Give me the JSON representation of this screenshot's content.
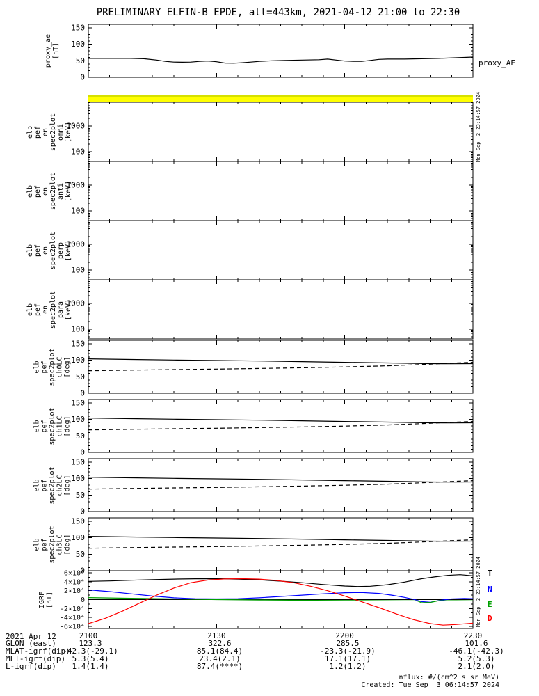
{
  "title": "PRELIMINARY ELFIN-B EPDE, alt=443km, 2021-04-12 21:00 to 22:30",
  "colors": {
    "flag_bar": "#ffff00",
    "flag_bar_top": "#d6e000",
    "axis": "#000000",
    "series_black": "#000000",
    "series_blue": "#0000ff",
    "series_green": "#00a000",
    "series_red": "#ff0000"
  },
  "ylabels": {
    "proxy": "proxy_ae\n[nT]",
    "en_omni": "elb\npef\nen\nspec2plot\nomni\n[keV]",
    "en_anti": "elb\npef\nen\nspec2plot\nanti\n[keV]",
    "en_perp": "elb\npef\nen\nspec2plot\nperp\n[keV]",
    "en_para": "elb\npef\nen\nspec2plot\npara\n[keV]",
    "ch0lc": "elb\npef\nspec2plot\nch0LC\n[deg]",
    "ch1lc": "elb\npef\nspec2plot\nch1LC\n[deg]",
    "ch2lc": "elb\npef\nspec2plot\nch2LC\n[deg]",
    "ch3lc": "elb\npef\nspec2plot\nch3LC\n[deg]",
    "igrf": "IGRF\n[nT]"
  },
  "right_labels": {
    "proxy": "proxy_AE",
    "legend": [
      {
        "label": "T",
        "color": "#000000"
      },
      {
        "label": "N",
        "color": "#0000ff"
      },
      {
        "label": "E",
        "color": "#00a000"
      },
      {
        "label": "D",
        "color": "#ff0000"
      }
    ]
  },
  "side_timestamps": {
    "top": "Mon Sep  2 23:14:57 2024",
    "bottom": "Mon Sep  2 23:14:57 2024"
  },
  "footer": {
    "date_label": "2021 Apr 12",
    "rows": [
      {
        "label": "GLON (east)",
        "values": [
          "123.3",
          "322.6",
          "285.5",
          "101.6"
        ]
      },
      {
        "label": "MLAT-igrf(dip)",
        "values": [
          "-42.3(-29.1)",
          "85.1(84.4)",
          "-23.3(-21.9)",
          "-46.1(-42.3)"
        ]
      },
      {
        "label": "MLT-igrf(dip)",
        "values": [
          "5.3(5.4)",
          "23.4(2.1)",
          "17.1(17.1)",
          "5.2(5.3)"
        ]
      },
      {
        "label": "L-igrf(dip)",
        "values": [
          "1.4(1.4)",
          "87.4(****)",
          "1.2(1.2)",
          "2.1(2.0)"
        ]
      }
    ],
    "nflux_note": "nflux: #/(cm^2 s sr MeV)",
    "created": "Created: Tue Sep  3 06:14:57 2024"
  },
  "chart_data": {
    "type": "line",
    "title": "PRELIMINARY ELFIN-B EPDE, alt=443km, 2021-04-12 21:00 to 22:30",
    "x_units": "minutes after 21:00 UT on 2021-04-12",
    "xaxis": {
      "range": [
        0,
        90
      ],
      "majors": [
        {
          "v": 0,
          "label": "2100"
        },
        {
          "v": 30,
          "label": "2130"
        },
        {
          "v": 60,
          "label": "2200"
        },
        {
          "v": 90,
          "label": "2230"
        }
      ],
      "minor_step": 5
    },
    "panels": [
      {
        "id": "proxy_ae",
        "ylabel": "proxy_ae [nT]",
        "yscale": "linear",
        "yrange": [
          0,
          160
        ],
        "yminor": 10,
        "yticks": [
          {
            "v": 0,
            "label": "0"
          },
          {
            "v": 50,
            "label": "50"
          },
          {
            "v": 100,
            "label": "100"
          },
          {
            "v": 150,
            "label": "150"
          }
        ],
        "series": [
          {
            "name": "proxy_AE",
            "color": "#000000",
            "dash": "",
            "x": [
              0,
              5,
              10,
              13,
              16,
              18,
              20,
              22,
              24,
              26,
              28,
              30,
              32,
              34,
              36,
              38,
              40,
              43,
              46,
              50,
              54,
              56,
              58,
              60,
              62,
              64,
              66,
              68,
              70,
              74,
              78,
              82,
              86,
              90
            ],
            "y": [
              57,
              57,
              57,
              56,
              52,
              48,
              46,
              45.5,
              46,
              48,
              49,
              47,
              43,
              42.5,
              44,
              46,
              48,
              50,
              51,
              52,
              53,
              55,
              52,
              49,
              48,
              48,
              51,
              54,
              55,
              55,
              56,
              57,
              59,
              61
            ]
          }
        ]
      },
      {
        "id": "en_omni",
        "ylabel": "elb pef en spec2plot omni [keV]",
        "yscale": "log",
        "yrange": [
          42,
          8300
        ],
        "yticks": [
          {
            "v": 100,
            "label": "100"
          },
          {
            "v": 1000,
            "label": "1000"
          }
        ],
        "series": []
      },
      {
        "id": "en_anti",
        "ylabel": "elb pef en spec2plot anti [keV]",
        "yscale": "log",
        "yrange": [
          42,
          8300
        ],
        "yticks": [
          {
            "v": 100,
            "label": "100"
          },
          {
            "v": 1000,
            "label": "1000"
          }
        ],
        "series": []
      },
      {
        "id": "en_perp",
        "ylabel": "elb pef en spec2plot perp [keV]",
        "yscale": "log",
        "yrange": [
          42,
          8300
        ],
        "yticks": [
          {
            "v": 100,
            "label": "100"
          },
          {
            "v": 1000,
            "label": "1000"
          }
        ],
        "series": []
      },
      {
        "id": "en_para",
        "ylabel": "elb pef en spec2plot para [keV]",
        "yscale": "log",
        "yrange": [
          42,
          8300
        ],
        "yticks": [
          {
            "v": 100,
            "label": "100"
          },
          {
            "v": 1000,
            "label": "1000"
          }
        ],
        "series": []
      },
      {
        "id": "ch0lc",
        "ylabel": "elb pef spec2plot ch0LC [deg]",
        "yscale": "linear",
        "yrange": [
          0,
          160
        ],
        "yminor": 10,
        "yticks": [
          {
            "v": 0,
            "label": "0"
          },
          {
            "v": 50,
            "label": "50"
          },
          {
            "v": 100,
            "label": "100"
          },
          {
            "v": 150,
            "label": "150"
          }
        ],
        "series": [
          {
            "name": "losscone",
            "color": "#000000",
            "dash": "",
            "x": [
              0,
              10,
              20,
              30,
              40,
              50,
              60,
              70,
              80,
              85,
              90
            ],
            "y": [
              104,
              102,
              100.5,
              99,
              97.5,
              95.5,
              93.5,
              91.5,
              89.5,
              89,
              89.5
            ]
          },
          {
            "name": "antilosscone",
            "color": "#000000",
            "dash": "6,4",
            "x": [
              0,
              10,
              20,
              30,
              40,
              50,
              60,
              70,
              80,
              85,
              90
            ],
            "y": [
              68,
              70,
              71.5,
              73,
              75,
              77,
              79.5,
              83,
              88,
              91,
              93.5
            ]
          }
        ]
      },
      {
        "id": "ch1lc",
        "ylabel": "elb pef spec2plot ch1LC [deg]",
        "yscale": "linear",
        "yrange": [
          0,
          160
        ],
        "yminor": 10,
        "yticks": [
          {
            "v": 0,
            "label": "0"
          },
          {
            "v": 50,
            "label": "50"
          },
          {
            "v": 100,
            "label": "100"
          },
          {
            "v": 150,
            "label": "150"
          }
        ],
        "series": [
          {
            "name": "losscone",
            "color": "#000000",
            "dash": "",
            "x": [
              0,
              10,
              20,
              30,
              40,
              50,
              60,
              70,
              80,
              85,
              90
            ],
            "y": [
              104,
              102,
              100.5,
              99,
              97.5,
              95.5,
              93.5,
              91.5,
              89.5,
              89,
              89.5
            ]
          },
          {
            "name": "antilosscone",
            "color": "#000000",
            "dash": "6,4",
            "x": [
              0,
              10,
              20,
              30,
              40,
              50,
              60,
              70,
              80,
              85,
              90
            ],
            "y": [
              68,
              70,
              71.5,
              73,
              75,
              77,
              79.5,
              83,
              88,
              91,
              93.5
            ]
          }
        ]
      },
      {
        "id": "ch2lc",
        "ylabel": "elb pef spec2plot ch2LC [deg]",
        "yscale": "linear",
        "yrange": [
          0,
          160
        ],
        "yminor": 10,
        "yticks": [
          {
            "v": 0,
            "label": "0"
          },
          {
            "v": 50,
            "label": "50"
          },
          {
            "v": 100,
            "label": "100"
          },
          {
            "v": 150,
            "label": "150"
          }
        ],
        "series": [
          {
            "name": "losscone",
            "color": "#000000",
            "dash": "",
            "x": [
              0,
              10,
              20,
              30,
              40,
              50,
              60,
              70,
              80,
              85,
              90
            ],
            "y": [
              104,
              102,
              100.5,
              99,
              97.5,
              95.5,
              93.5,
              91.5,
              89.5,
              89,
              89.5
            ]
          },
          {
            "name": "antilosscone",
            "color": "#000000",
            "dash": "6,4",
            "x": [
              0,
              10,
              20,
              30,
              40,
              50,
              60,
              70,
              80,
              85,
              90
            ],
            "y": [
              68,
              70,
              71.5,
              73,
              75,
              77,
              79.5,
              83,
              88,
              91,
              93.5
            ]
          }
        ]
      },
      {
        "id": "ch3lc",
        "ylabel": "elb pef spec2plot ch3LC [deg]",
        "yscale": "linear",
        "yrange": [
          0,
          160
        ],
        "yminor": 10,
        "yticks": [
          {
            "v": 0,
            "label": "0"
          },
          {
            "v": 50,
            "label": "50"
          },
          {
            "v": 100,
            "label": "100"
          },
          {
            "v": 150,
            "label": "150"
          }
        ],
        "series": [
          {
            "name": "losscone",
            "color": "#000000",
            "dash": "",
            "x": [
              0,
              10,
              20,
              30,
              40,
              50,
              60,
              70,
              80,
              85,
              90
            ],
            "y": [
              104,
              102,
              100.5,
              99,
              97.5,
              95.5,
              93.5,
              91.5,
              89.5,
              89,
              89.5
            ]
          },
          {
            "name": "antilosscone",
            "color": "#000000",
            "dash": "6,4",
            "x": [
              0,
              10,
              20,
              30,
              40,
              50,
              60,
              70,
              80,
              85,
              90
            ],
            "y": [
              68,
              70,
              71.5,
              73,
              75,
              77,
              79.5,
              83,
              88,
              91,
              93.5
            ]
          }
        ]
      },
      {
        "id": "igrf",
        "ylabel": "IGRF [nT]",
        "yscale": "linear",
        "yrange": [
          -65000,
          65000
        ],
        "yminor": 10000,
        "zero_line": true,
        "xtick_labels": true,
        "yticks": [
          {
            "v": -60000,
            "label": "-6×10⁴"
          },
          {
            "v": -40000,
            "label": "-4×10⁴"
          },
          {
            "v": -20000,
            "label": "-2×10⁴"
          },
          {
            "v": 0,
            "label": "0"
          },
          {
            "v": 20000,
            "label": "2×10⁴"
          },
          {
            "v": 40000,
            "label": "4×10⁴"
          },
          {
            "v": 60000,
            "label": "6×10⁴"
          }
        ],
        "series": [
          {
            "name": "T",
            "color": "#000000",
            "dash": "",
            "x": [
              0,
              5,
              10,
              15,
              20,
              25,
              30,
              35,
              40,
              45,
              50,
              55,
              60,
              63,
              66,
              70,
              74,
              78,
              81,
              84,
              87,
              90
            ],
            "y": [
              41000,
              42000,
              43500,
              45000,
              46000,
              46800,
              47000,
              46000,
              44500,
              41500,
              38000,
              34000,
              30500,
              29500,
              30000,
              33500,
              39500,
              47000,
              51000,
              54500,
              56000,
              53500
            ]
          },
          {
            "name": "N",
            "color": "#0000ff",
            "dash": "",
            "x": [
              0,
              5,
              10,
              15,
              20,
              25,
              30,
              35,
              40,
              45,
              50,
              55,
              60,
              64,
              68,
              71,
              74,
              76,
              78,
              80,
              82,
              85,
              88,
              90
            ],
            "y": [
              22000,
              18000,
              13000,
              8000,
              4000,
              2000,
              1500,
              2000,
              4000,
              7000,
              10000,
              13000,
              15500,
              16000,
              14000,
              10000,
              5000,
              1000,
              -4500,
              -6000,
              -2000,
              1500,
              2500,
              2000
            ]
          },
          {
            "name": "E",
            "color": "#00a000",
            "dash": "",
            "x": [
              0,
              10,
              20,
              30,
              40,
              50,
              60,
              68,
              74,
              77,
              78,
              80,
              82,
              86,
              90
            ],
            "y": [
              4500,
              3000,
              1500,
              0,
              -1000,
              -1500,
              -2000,
              -2500,
              -3000,
              -3000,
              -7000,
              -6500,
              -2500,
              -2500,
              -3000
            ]
          },
          {
            "name": "D",
            "color": "#ff0000",
            "dash": "",
            "x": [
              0,
              4,
              8,
              12,
              16,
              20,
              24,
              28,
              32,
              36,
              40,
              44,
              48,
              52,
              56,
              60,
              64,
              68,
              72,
              76,
              80,
              83,
              86,
              90
            ],
            "y": [
              -54000,
              -42000,
              -26000,
              -8000,
              10000,
              26000,
              38000,
              44000,
              46500,
              47000,
              46000,
              43000,
              38000,
              30000,
              20000,
              8000,
              -5000,
              -18000,
              -32000,
              -45000,
              -54000,
              -57500,
              -56000,
              -53000
            ]
          }
        ]
      }
    ]
  }
}
